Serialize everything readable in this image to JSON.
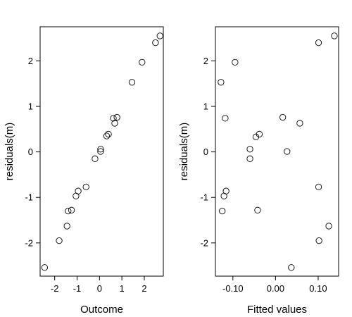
{
  "chart_data": [
    {
      "type": "scatter",
      "xlabel": "Outcome",
      "ylabel": "residuals(m)",
      "xlim": [
        -2.65,
        2.85
      ],
      "ylim": [
        -2.73,
        2.75
      ],
      "xticks": [
        -2,
        -1,
        0,
        1,
        2
      ],
      "xtick_labels": [
        "-2",
        "-1",
        "0",
        "1",
        "2"
      ],
      "yticks": [
        -2,
        -1,
        0,
        1,
        2
      ],
      "ytick_labels": [
        "-2",
        "-1",
        "0",
        "1",
        "2"
      ],
      "grid": false,
      "points": [
        {
          "x": -2.45,
          "y": -2.54
        },
        {
          "x": -1.8,
          "y": -1.95
        },
        {
          "x": -1.45,
          "y": -1.63
        },
        {
          "x": -1.4,
          "y": -1.3
        },
        {
          "x": -1.25,
          "y": -1.28
        },
        {
          "x": -1.05,
          "y": -0.97
        },
        {
          "x": -0.95,
          "y": -0.86
        },
        {
          "x": -0.6,
          "y": -0.77
        },
        {
          "x": -0.2,
          "y": -0.15
        },
        {
          "x": 0.05,
          "y": 0.06
        },
        {
          "x": 0.05,
          "y": 0.01
        },
        {
          "x": 0.32,
          "y": 0.35
        },
        {
          "x": 0.4,
          "y": 0.39
        },
        {
          "x": 0.62,
          "y": 0.74
        },
        {
          "x": 0.68,
          "y": 0.63
        },
        {
          "x": 0.78,
          "y": 0.76
        },
        {
          "x": 1.45,
          "y": 1.53
        },
        {
          "x": 1.9,
          "y": 1.97
        },
        {
          "x": 2.5,
          "y": 2.4
        },
        {
          "x": 2.7,
          "y": 2.55
        }
      ]
    },
    {
      "type": "scatter",
      "xlabel": "Fitted values",
      "ylabel": "residuals(m)",
      "xlim": [
        -0.141,
        0.148
      ],
      "ylim": [
        -2.73,
        2.75
      ],
      "xticks": [
        -0.1,
        0.0,
        0.1
      ],
      "xtick_labels": [
        "-0.10",
        "0.00",
        "0.10"
      ],
      "yticks": [
        -2,
        -1,
        0,
        1,
        2
      ],
      "ytick_labels": [
        "-2",
        "-1",
        "0",
        "1",
        "2"
      ],
      "grid": false,
      "points": [
        {
          "x": -0.128,
          "y": 1.53
        },
        {
          "x": -0.095,
          "y": 1.97
        },
        {
          "x": -0.118,
          "y": 0.74
        },
        {
          "x": -0.06,
          "y": 0.06
        },
        {
          "x": -0.06,
          "y": -0.15
        },
        {
          "x": -0.046,
          "y": 0.33
        },
        {
          "x": -0.038,
          "y": 0.39
        },
        {
          "x": -0.116,
          "y": -0.86
        },
        {
          "x": -0.121,
          "y": -0.97
        },
        {
          "x": -0.125,
          "y": -1.3
        },
        {
          "x": -0.042,
          "y": -1.28
        },
        {
          "x": 0.017,
          "y": 0.76
        },
        {
          "x": 0.027,
          "y": 0.01
        },
        {
          "x": 0.057,
          "y": 0.63
        },
        {
          "x": 0.037,
          "y": -2.54
        },
        {
          "x": 0.101,
          "y": 2.4
        },
        {
          "x": 0.138,
          "y": 2.55
        },
        {
          "x": 0.101,
          "y": -0.77
        },
        {
          "x": 0.102,
          "y": -1.95
        },
        {
          "x": 0.125,
          "y": -1.63
        }
      ]
    }
  ]
}
